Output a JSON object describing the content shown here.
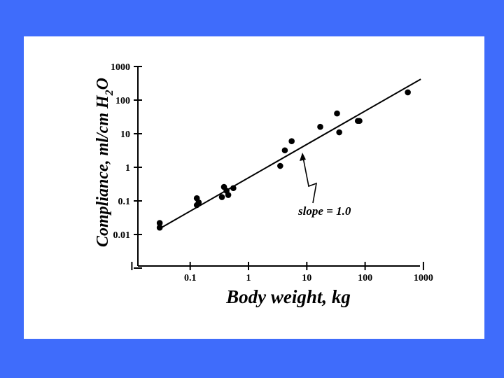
{
  "colors": {
    "background": "#3f6cfb",
    "panel": "#ffffff",
    "ink": "#000000"
  },
  "chart_data": {
    "type": "scatter",
    "title": "",
    "xlabel": "Body weight, kg",
    "ylabel_parts": [
      "Compliance, ml/cm H",
      "2",
      "O"
    ],
    "xscale": "log",
    "yscale": "log",
    "xlim": [
      0.01,
      1000
    ],
    "ylim": [
      0.001,
      1000
    ],
    "x_ticks": [
      0.1,
      1,
      10,
      100,
      1000
    ],
    "x_tick_labels": [
      "0.1",
      "1",
      "10",
      "100",
      "1000"
    ],
    "y_ticks": [
      0.01,
      0.1,
      1,
      10,
      100,
      1000
    ],
    "y_tick_labels": [
      "0.01",
      "0.1",
      "1",
      "10",
      "100",
      "1000"
    ],
    "grid": false,
    "legend": "none",
    "points": [
      {
        "x": 0.03,
        "y": 0.022
      },
      {
        "x": 0.03,
        "y": 0.016
      },
      {
        "x": 0.13,
        "y": 0.12
      },
      {
        "x": 0.13,
        "y": 0.075
      },
      {
        "x": 0.14,
        "y": 0.09
      },
      {
        "x": 0.35,
        "y": 0.13
      },
      {
        "x": 0.38,
        "y": 0.26
      },
      {
        "x": 0.42,
        "y": 0.2
      },
      {
        "x": 0.45,
        "y": 0.15
      },
      {
        "x": 0.55,
        "y": 0.24
      },
      {
        "x": 3.5,
        "y": 1.1
      },
      {
        "x": 4.2,
        "y": 3.2
      },
      {
        "x": 5.5,
        "y": 6.0
      },
      {
        "x": 17,
        "y": 16
      },
      {
        "x": 33,
        "y": 40
      },
      {
        "x": 36,
        "y": 11
      },
      {
        "x": 75,
        "y": 24
      },
      {
        "x": 80,
        "y": 24
      },
      {
        "x": 540,
        "y": 170
      }
    ],
    "fit_line": {
      "slope": 1.0,
      "x": [
        0.028,
        900
      ],
      "y": [
        0.014,
        420
      ]
    },
    "annotation": "slope = 1.0"
  }
}
